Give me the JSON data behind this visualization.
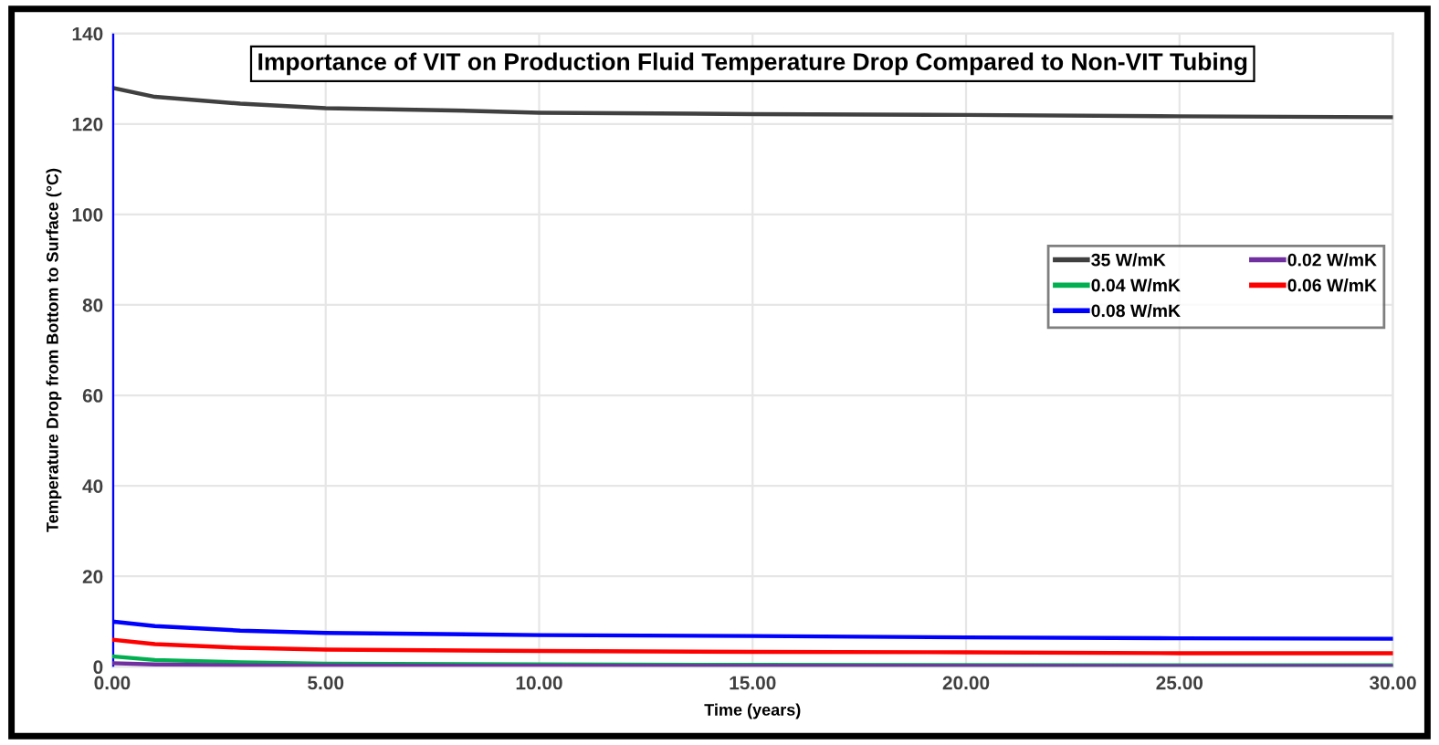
{
  "chart_data": {
    "type": "line",
    "title": "Importance of VIT on Production Fluid Temperature Drop Compared to Non-VIT Tubing",
    "xlabel": "Time (years)",
    "ylabel": "Temperature Drop from Bottom to Surface (°C)",
    "xlim": [
      0,
      30
    ],
    "ylim": [
      0,
      140
    ],
    "xticks": [
      {
        "value": 0,
        "label": "0.00"
      },
      {
        "value": 5,
        "label": "5.00"
      },
      {
        "value": 10,
        "label": "10.00"
      },
      {
        "value": 15,
        "label": "15.00"
      },
      {
        "value": 20,
        "label": "20.00"
      },
      {
        "value": 25,
        "label": "25.00"
      },
      {
        "value": 30,
        "label": "30.00"
      }
    ],
    "yticks": [
      0,
      20,
      40,
      60,
      80,
      100,
      120,
      140
    ],
    "grid": true,
    "legend": "right",
    "marker": "none",
    "line_style": "solid",
    "series": [
      {
        "name": "35 W/mK",
        "color": "#404040",
        "x": [
          0,
          1,
          3,
          5,
          8,
          10,
          15,
          20,
          25,
          30
        ],
        "values": [
          128,
          126,
          124.5,
          123.5,
          123,
          122.5,
          122.2,
          122,
          121.7,
          121.5
        ]
      },
      {
        "name": "0.02 W/mK",
        "color": "#7030a0",
        "x": [
          0,
          1,
          3,
          10,
          30
        ],
        "values": [
          0.8,
          0.5,
          0.3,
          0.2,
          0.1
        ]
      },
      {
        "name": "0.04 W/mK",
        "color": "#00b050",
        "x": [
          0,
          1,
          3,
          5,
          10,
          15,
          30
        ],
        "values": [
          2.3,
          1.5,
          1,
          0.7,
          0.5,
          0.4,
          0.3
        ]
      },
      {
        "name": "0.06 W/mK",
        "color": "#ff0000",
        "x": [
          0,
          1,
          3,
          5,
          10,
          15,
          20,
          25,
          30
        ],
        "values": [
          6,
          5,
          4.2,
          3.8,
          3.5,
          3.3,
          3.2,
          3,
          3
        ]
      },
      {
        "name": "0.08 W/mK",
        "color": "#0000ff",
        "x": [
          0,
          0,
          0,
          1,
          3,
          5,
          10,
          15,
          20,
          25,
          30
        ],
        "values": [
          0,
          140,
          10,
          9,
          8,
          7.5,
          7,
          6.8,
          6.5,
          6.3,
          6.2
        ]
      }
    ]
  }
}
